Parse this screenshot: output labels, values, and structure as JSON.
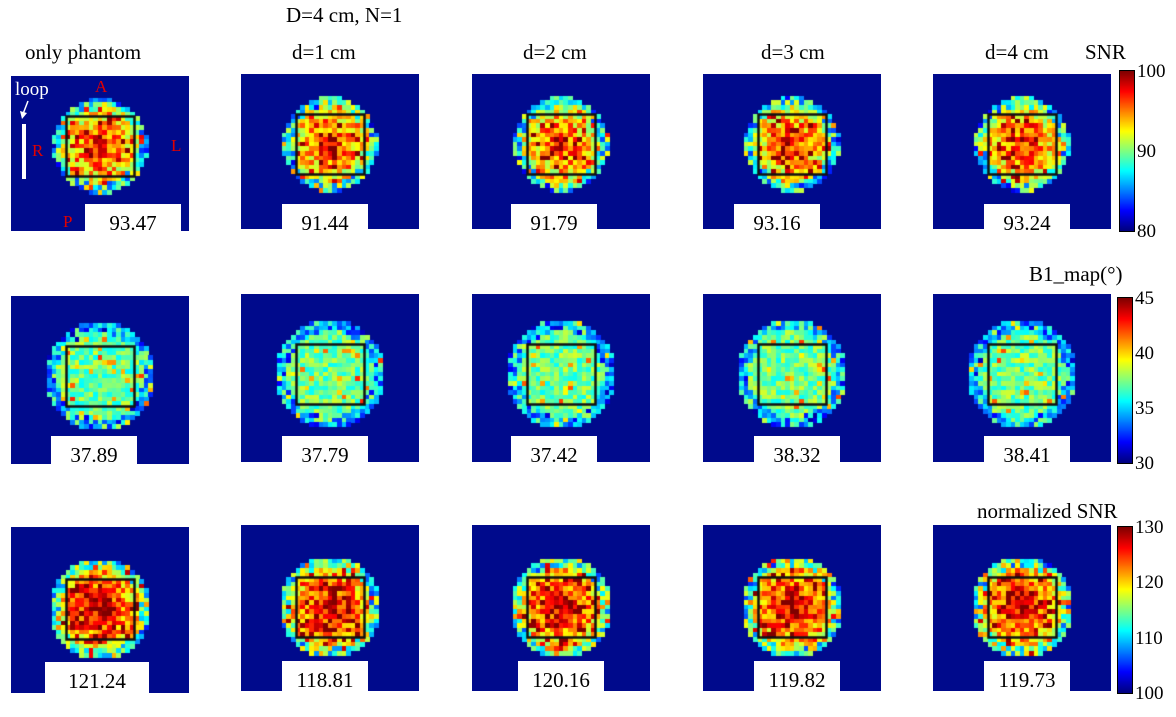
{
  "figure": {
    "title": "D=4 cm, N=1",
    "columns": [
      {
        "label": "only phantom"
      },
      {
        "label": "d=1 cm"
      },
      {
        "label": "d=2 cm"
      },
      {
        "label": "d=3 cm"
      },
      {
        "label": "d=4 cm"
      }
    ],
    "orientation": {
      "anterior": "A",
      "posterior": "P",
      "right": "R",
      "left": "L",
      "loop": "loop"
    },
    "rows": [
      {
        "name": "SNR",
        "colorbar": {
          "title": "SNR",
          "min": 80,
          "max": 100,
          "ticks": [
            "100",
            "90",
            "80"
          ]
        },
        "values": [
          "93.47",
          "91.44",
          "91.79",
          "93.16",
          "93.24"
        ]
      },
      {
        "name": "B1_map",
        "colorbar": {
          "title": "B1_map(°)",
          "min": 30,
          "max": 45,
          "ticks": [
            "45",
            "40",
            "35",
            "30"
          ]
        },
        "values": [
          "37.89",
          "37.79",
          "37.42",
          "38.32",
          "38.41"
        ]
      },
      {
        "name": "normalized SNR",
        "colorbar": {
          "title": "normalized SNR",
          "min": 100,
          "max": 130,
          "ticks": [
            "130",
            "120",
            "110",
            "100"
          ]
        },
        "values": [
          "121.24",
          "118.81",
          "120.16",
          "119.82",
          "119.73"
        ]
      }
    ],
    "colormap": "jet",
    "background_color": "#000a8c"
  }
}
